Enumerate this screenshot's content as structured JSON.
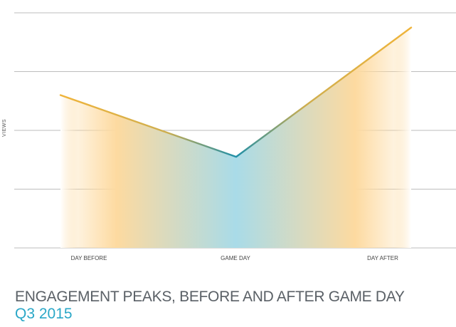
{
  "chart_data": {
    "type": "area",
    "title": "ENGAGEMENT PEAKS, BEFORE AND AFTER GAME DAY",
    "subtitle": "Q3 2015",
    "xlabel": "",
    "ylabel": "VIEWS",
    "categories": [
      "DAY BEFORE",
      "GAME DAY",
      "DAY AFTER"
    ],
    "values": [
      52,
      31,
      75
    ],
    "ylim": [
      0,
      80
    ],
    "grid": true,
    "gridlines": 5,
    "legend": "none"
  },
  "colors": {
    "line_peak": "#f0b43a",
    "line_low": "#1f8fa8",
    "fill_peak": "#fddaa0",
    "fill_low": "#a9dbe8",
    "grid": "#bdbdbd",
    "title": "#5a6066",
    "subtitle": "#2aa7c7"
  }
}
